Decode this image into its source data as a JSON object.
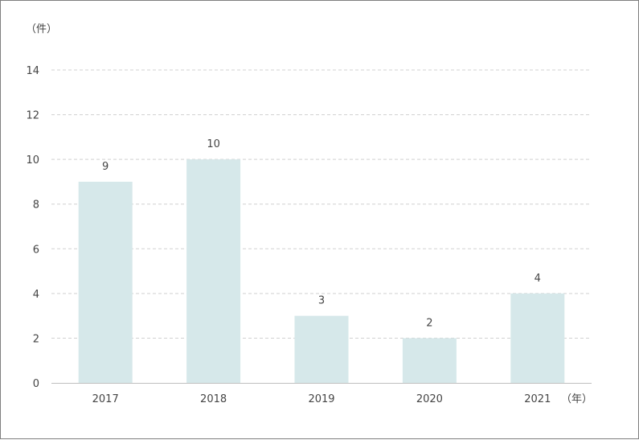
{
  "chart_data": {
    "type": "bar",
    "categories": [
      "2017",
      "2018",
      "2019",
      "2020",
      "2021"
    ],
    "values": [
      9,
      10,
      3,
      2,
      4
    ],
    "data_labels": [
      "9",
      "10",
      "3",
      "2",
      "4"
    ],
    "y_unit": "（件）",
    "x_unit": "（年）",
    "ylim": [
      0,
      14
    ],
    "y_ticks": [
      0,
      2,
      4,
      6,
      8,
      10,
      12,
      14
    ],
    "grid": true,
    "bar_color": "#d6e8ea",
    "grid_color": "#d0d0d0",
    "axis_color": "#bfbfbf"
  }
}
